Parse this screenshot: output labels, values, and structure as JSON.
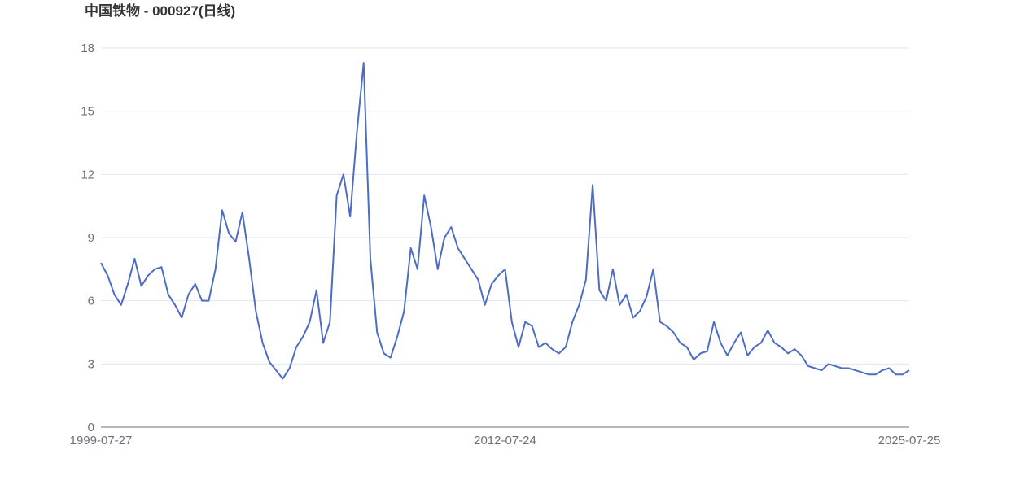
{
  "chart_data": {
    "type": "line",
    "title": "中国铁物 - 000927(日线)",
    "categories": [
      "1999-07-27",
      null,
      null,
      null,
      null,
      null,
      null,
      null,
      null,
      null,
      null,
      null,
      null,
      null,
      null,
      null,
      null,
      null,
      null,
      null,
      null,
      null,
      null,
      null,
      null,
      null,
      null,
      null,
      null,
      null,
      null,
      null,
      null,
      null,
      null,
      null,
      null,
      null,
      null,
      null,
      null,
      null,
      null,
      null,
      null,
      null,
      null,
      null,
      null,
      null,
      null,
      null,
      null,
      null,
      null,
      null,
      null,
      null,
      null,
      null,
      "2012-07-24",
      null,
      null,
      null,
      null,
      null,
      null,
      null,
      null,
      null,
      null,
      null,
      null,
      null,
      null,
      null,
      null,
      null,
      null,
      null,
      null,
      null,
      null,
      null,
      null,
      null,
      null,
      null,
      null,
      null,
      null,
      null,
      null,
      null,
      null,
      null,
      null,
      null,
      null,
      null,
      null,
      null,
      null,
      null,
      null,
      null,
      null,
      null,
      null,
      null,
      null,
      null,
      null,
      null,
      null,
      null,
      null,
      null,
      null,
      null,
      "2025-07-25"
    ],
    "values": [
      7.8,
      7.2,
      6.3,
      5.8,
      6.8,
      8.0,
      6.7,
      7.2,
      7.5,
      7.6,
      6.3,
      5.8,
      5.2,
      6.3,
      6.8,
      6.0,
      6.0,
      7.5,
      10.3,
      9.2,
      8.8,
      10.2,
      8.0,
      5.5,
      4.0,
      3.1,
      2.7,
      2.3,
      2.8,
      3.8,
      4.3,
      5.0,
      6.5,
      4.0,
      5.0,
      11.0,
      12.0,
      10.0,
      14.0,
      17.3,
      8.0,
      4.5,
      3.5,
      3.3,
      4.3,
      5.5,
      8.5,
      7.5,
      11.0,
      9.5,
      7.5,
      9.0,
      9.5,
      8.5,
      8.0,
      7.5,
      7.0,
      5.8,
      6.8,
      7.2,
      7.5,
      5.0,
      3.8,
      5.0,
      4.8,
      3.8,
      4.0,
      3.7,
      3.5,
      3.8,
      5.0,
      5.8,
      7.0,
      11.5,
      6.5,
      6.0,
      7.5,
      5.8,
      6.3,
      5.2,
      5.5,
      6.2,
      7.5,
      5.0,
      4.8,
      4.5,
      4.0,
      3.8,
      3.2,
      3.5,
      3.6,
      5.0,
      4.0,
      3.4,
      4.0,
      4.5,
      3.4,
      3.8,
      4.0,
      4.6,
      4.0,
      3.8,
      3.5,
      3.7,
      3.4,
      2.9,
      2.8,
      2.7,
      3.0,
      2.9,
      2.8,
      2.8,
      2.7,
      2.6,
      2.5,
      2.5,
      2.7,
      2.8,
      2.5,
      2.5,
      2.7
    ],
    "color": "#4e6cc4",
    "ylim": [
      0,
      18
    ],
    "yticks": [
      0,
      3,
      6,
      9,
      12,
      15,
      18
    ],
    "grid": true
  }
}
